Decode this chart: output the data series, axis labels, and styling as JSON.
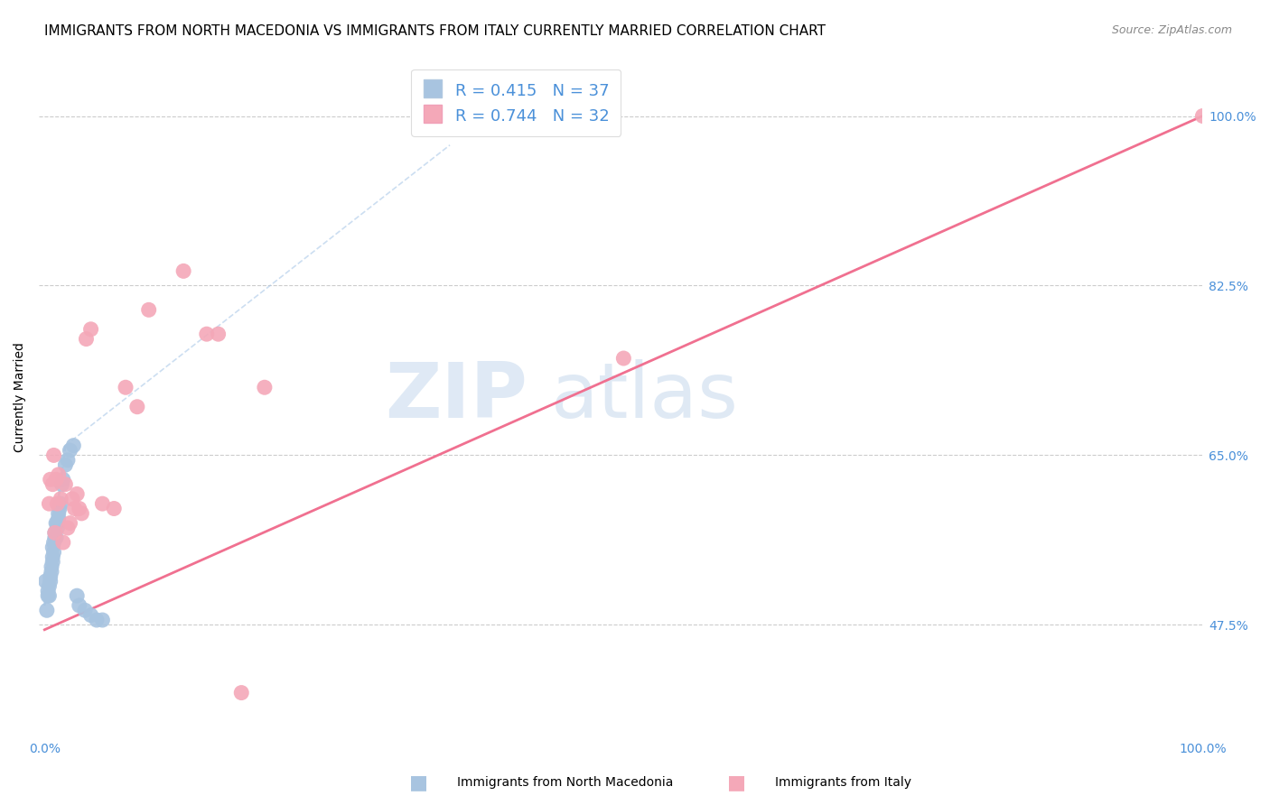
{
  "title": "IMMIGRANTS FROM NORTH MACEDONIA VS IMMIGRANTS FROM ITALY CURRENTLY MARRIED CORRELATION CHART",
  "source": "Source: ZipAtlas.com",
  "ylabel": "Currently Married",
  "ytick_labels": [
    "47.5%",
    "65.0%",
    "82.5%",
    "100.0%"
  ],
  "ytick_values": [
    0.475,
    0.65,
    0.825,
    1.0
  ],
  "xlim": [
    -0.005,
    1.0
  ],
  "ylim": [
    0.36,
    1.06
  ],
  "legend1_label": "Immigrants from North Macedonia",
  "legend2_label": "Immigrants from Italy",
  "r1": 0.415,
  "n1": 37,
  "r2": 0.744,
  "n2": 32,
  "color1": "#a8c4e0",
  "color2": "#f4a8b8",
  "line1_color": "#5b9bd5",
  "line2_color": "#f07090",
  "trendline1_color": "#aac8e8",
  "watermark_zip": "ZIP",
  "watermark_atlas": "atlas",
  "title_fontsize": 11,
  "source_fontsize": 9,
  "scatter1_x": [
    0.001,
    0.002,
    0.003,
    0.003,
    0.004,
    0.004,
    0.005,
    0.005,
    0.006,
    0.006,
    0.007,
    0.007,
    0.007,
    0.008,
    0.008,
    0.009,
    0.009,
    0.01,
    0.01,
    0.011,
    0.011,
    0.012,
    0.012,
    0.013,
    0.014,
    0.015,
    0.016,
    0.018,
    0.02,
    0.022,
    0.025,
    0.028,
    0.03,
    0.035,
    0.04,
    0.045,
    0.05
  ],
  "scatter1_y": [
    0.52,
    0.49,
    0.51,
    0.505,
    0.505,
    0.515,
    0.525,
    0.52,
    0.535,
    0.53,
    0.555,
    0.545,
    0.54,
    0.55,
    0.56,
    0.565,
    0.57,
    0.58,
    0.565,
    0.575,
    0.58,
    0.59,
    0.585,
    0.595,
    0.6,
    0.62,
    0.625,
    0.64,
    0.645,
    0.655,
    0.66,
    0.505,
    0.495,
    0.49,
    0.485,
    0.48,
    0.48
  ],
  "scatter2_x": [
    0.004,
    0.005,
    0.007,
    0.008,
    0.009,
    0.01,
    0.011,
    0.012,
    0.014,
    0.016,
    0.018,
    0.02,
    0.022,
    0.024,
    0.026,
    0.028,
    0.03,
    0.032,
    0.036,
    0.04,
    0.05,
    0.06,
    0.07,
    0.08,
    0.09,
    0.12,
    0.14,
    0.15,
    0.17,
    0.19,
    0.5,
    1.0
  ],
  "scatter2_y": [
    0.6,
    0.625,
    0.62,
    0.65,
    0.57,
    0.625,
    0.6,
    0.63,
    0.605,
    0.56,
    0.62,
    0.575,
    0.58,
    0.605,
    0.595,
    0.61,
    0.595,
    0.59,
    0.77,
    0.78,
    0.6,
    0.595,
    0.72,
    0.7,
    0.8,
    0.84,
    0.775,
    0.775,
    0.405,
    0.72,
    0.75,
    1.0
  ],
  "line1_x_start": 0.0,
  "line1_x_end": 0.018,
  "line1_y_start": 0.495,
  "line1_y_end": 0.66,
  "line2_x_start": 0.0,
  "line2_x_end": 1.0,
  "line2_y_start": 0.47,
  "line2_y_end": 1.0
}
